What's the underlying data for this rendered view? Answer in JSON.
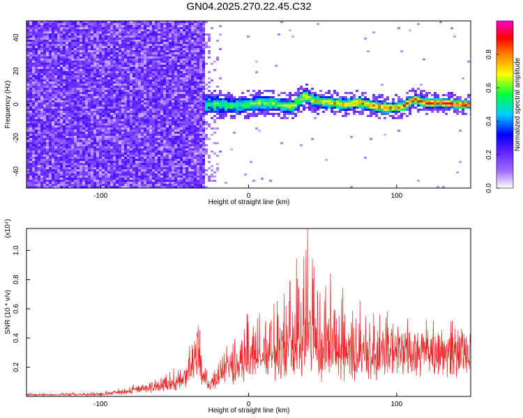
{
  "chart_data": [
    {
      "type": "heatmap",
      "title": "GN04.2025.270.22.45.C32",
      "xlabel": "Height of straight line (km)",
      "ylabel": "Frequency (Hz)",
      "xlim": [
        -150,
        150
      ],
      "ylim": [
        -50,
        50
      ],
      "x_ticks": [
        "-100",
        "0",
        "100"
      ],
      "y_ticks": [
        "-40",
        "-20",
        "0",
        "20",
        "40"
      ],
      "colorbar": {
        "label": "Normalized spectral amplitude",
        "range": [
          0,
          1
        ],
        "ticks": [
          "0.0",
          "0.2",
          "0.4",
          "0.6",
          "0.8"
        ]
      },
      "regions": [
        {
          "x_range": [
            -150,
            -30
          ],
          "f_range": [
            -50,
            50
          ],
          "amplitude": "low, broadband noise"
        },
        {
          "x_range": [
            -30,
            150
          ],
          "f_range": [
            -8,
            8
          ],
          "amplitude": "0.4-0.9 narrow band near 0 Hz"
        }
      ],
      "ridge_center_freq": [
        [
          -30,
          0
        ],
        [
          -20,
          0
        ],
        [
          -10,
          -1
        ],
        [
          0,
          0
        ],
        [
          10,
          1
        ],
        [
          20,
          0
        ],
        [
          30,
          -1
        ],
        [
          38,
          5
        ],
        [
          45,
          2
        ],
        [
          55,
          1
        ],
        [
          65,
          0
        ],
        [
          75,
          1
        ],
        [
          85,
          -1
        ],
        [
          95,
          -2
        ],
        [
          105,
          -1
        ],
        [
          112,
          3
        ],
        [
          120,
          1
        ],
        [
          130,
          1
        ],
        [
          140,
          0
        ],
        [
          150,
          0
        ]
      ]
    },
    {
      "type": "line",
      "xlabel": "Height of straight line (km)",
      "ylabel": "SNR (10 * v/v)",
      "scale_note": "(x10⁴)",
      "xlim": [
        -150,
        150
      ],
      "ylim": [
        0,
        1.15
      ],
      "x_ticks": [
        "-100",
        "0",
        "100"
      ],
      "y_ticks": [
        "0.2",
        "0.4",
        "0.6",
        "0.8",
        "1.0"
      ],
      "line_color": "#ee2222",
      "envelope": [
        {
          "x": -150,
          "base": 0.01,
          "spread": 0.01
        },
        {
          "x": -100,
          "base": 0.01,
          "spread": 0.02
        },
        {
          "x": -85,
          "base": 0.03,
          "spread": 0.03
        },
        {
          "x": -60,
          "base": 0.06,
          "spread": 0.08
        },
        {
          "x": -45,
          "base": 0.1,
          "spread": 0.12
        },
        {
          "x": -38,
          "base": 0.16,
          "spread": 0.2
        },
        {
          "x": -35,
          "base": 0.25,
          "spread": 0.25
        },
        {
          "x": -30,
          "base": 0.15,
          "spread": 0.2
        },
        {
          "x": -27,
          "base": 0.06,
          "spread": 0.08
        },
        {
          "x": -20,
          "base": 0.15,
          "spread": 0.15
        },
        {
          "x": -10,
          "base": 0.18,
          "spread": 0.25
        },
        {
          "x": 0,
          "base": 0.22,
          "spread": 0.35
        },
        {
          "x": 15,
          "base": 0.22,
          "spread": 0.45
        },
        {
          "x": 30,
          "base": 0.25,
          "spread": 0.6
        },
        {
          "x": 40,
          "base": 0.3,
          "spread": 0.85
        },
        {
          "x": 50,
          "base": 0.2,
          "spread": 0.7
        },
        {
          "x": 55,
          "base": 0.3,
          "spread": 0.75
        },
        {
          "x": 65,
          "base": 0.25,
          "spread": 0.5
        },
        {
          "x": 80,
          "base": 0.25,
          "spread": 0.4
        },
        {
          "x": 100,
          "base": 0.3,
          "spread": 0.3
        },
        {
          "x": 120,
          "base": 0.32,
          "spread": 0.18
        },
        {
          "x": 150,
          "base": 0.32,
          "spread": 0.1
        }
      ]
    }
  ]
}
